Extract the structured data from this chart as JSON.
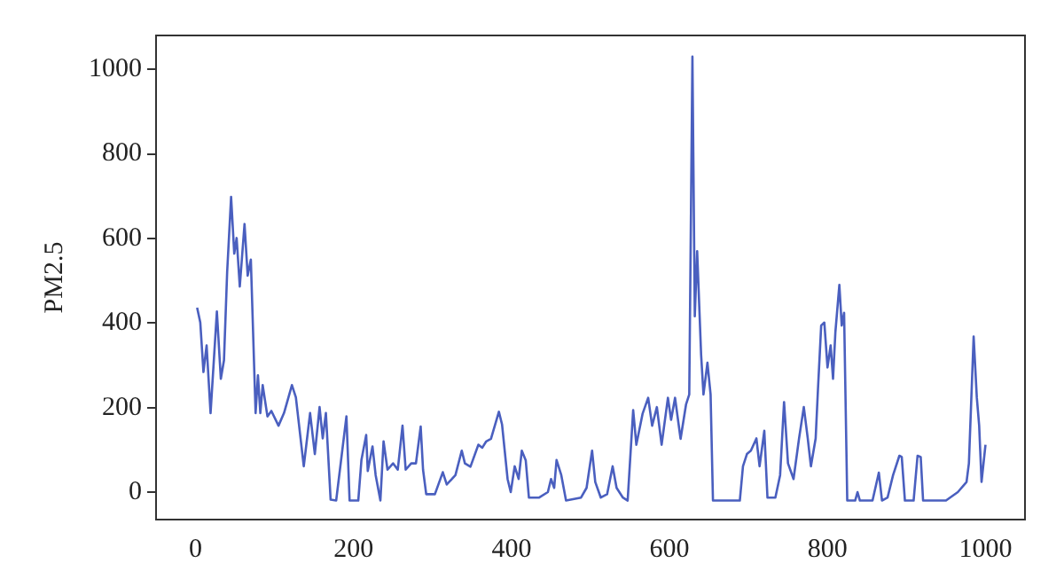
{
  "chart_data": {
    "type": "line",
    "ylabel": "PM2.5",
    "xlim": [
      -50,
      1050
    ],
    "ylim": [
      -65,
      1080
    ],
    "xticks": [
      0,
      200,
      400,
      600,
      800,
      1000
    ],
    "yticks": [
      0,
      200,
      400,
      600,
      800,
      1000
    ],
    "grid": false,
    "legend": false,
    "marker": "none",
    "line_style": "solid",
    "series": [
      {
        "color": "#4a5fbf",
        "x": [
          2,
          6,
          10,
          14,
          19,
          27,
          32,
          36,
          40,
          45,
          49,
          52,
          56,
          62,
          66,
          70,
          76,
          79,
          82,
          85,
          91,
          96,
          105,
          112,
          122,
          127,
          137,
          145,
          151,
          157,
          161,
          165,
          171,
          178,
          191,
          195,
          206,
          210,
          216,
          218,
          224,
          228,
          234,
          238,
          243,
          250,
          256,
          262,
          266,
          273,
          279,
          285,
          288,
          292,
          303,
          313,
          318,
          329,
          337,
          341,
          348,
          358,
          363,
          368,
          374,
          384,
          388,
          395,
          399,
          404,
          409,
          413,
          418,
          422,
          435,
          446,
          450,
          454,
          457,
          463,
          469,
          488,
          495,
          502,
          506,
          513,
          521,
          528,
          533,
          541,
          547,
          554,
          558,
          566,
          573,
          578,
          584,
          590,
          598,
          602,
          607,
          614,
          621,
          625,
          629,
          632,
          635,
          640,
          643,
          648,
          652,
          655,
          689,
          693,
          698,
          703,
          710,
          714,
          720,
          724,
          734,
          740,
          745,
          750,
          757,
          764,
          770,
          775,
          779,
          785,
          788,
          792,
          796,
          800,
          804,
          807,
          810,
          815,
          818,
          821,
          825,
          835,
          838,
          841,
          857,
          865,
          869,
          876,
          883,
          891,
          894,
          898,
          909,
          914,
          918,
          921,
          950,
          965,
          976,
          979,
          985,
          989,
          992,
          995,
          1000
        ],
        "values": [
          436,
          401,
          284,
          347,
          187,
          427,
          268,
          312,
          520,
          698,
          564,
          601,
          486,
          634,
          512,
          550,
          187,
          276,
          187,
          253,
          179,
          192,
          157,
          187,
          253,
          224,
          61,
          187,
          90,
          201,
          127,
          187,
          -18,
          -20,
          179,
          -20,
          -20,
          76,
          135,
          50,
          108,
          40,
          -20,
          120,
          53,
          68,
          53,
          157,
          53,
          68,
          68,
          155,
          53,
          -5,
          -5,
          47,
          18,
          40,
          98,
          68,
          60,
          112,
          105,
          120,
          126,
          190,
          160,
          31,
          0,
          61,
          31,
          98,
          75,
          -13,
          -13,
          0,
          31,
          10,
          76,
          40,
          -20,
          -13,
          10,
          98,
          24,
          -13,
          -5,
          61,
          10,
          -13,
          -20,
          194,
          112,
          186,
          223,
          157,
          201,
          112,
          223,
          171,
          223,
          126,
          208,
          231,
          1030,
          416,
          570,
          325,
          231,
          306,
          231,
          -20,
          -20,
          61,
          90,
          98,
          127,
          61,
          145,
          -13,
          -13,
          40,
          213,
          68,
          31,
          127,
          201,
          127,
          61,
          127,
          246,
          394,
          401,
          295,
          347,
          268,
          379,
          490,
          394,
          424,
          -20,
          -20,
          0,
          -20,
          -20,
          46,
          -20,
          -13,
          40,
          86,
          83,
          -20,
          -20,
          86,
          83,
          -20,
          -20,
          0,
          24,
          68,
          368,
          224,
          157,
          24,
          112
        ]
      }
    ]
  }
}
